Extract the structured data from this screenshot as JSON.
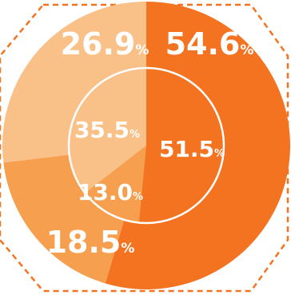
{
  "chart_data": [
    {
      "type": "pie",
      "ring": "outer",
      "categories": [
        "",
        "",
        ""
      ],
      "values": [
        54.6,
        18.5,
        26.9
      ],
      "labels": [
        "54.6",
        "18.5",
        "26.9"
      ],
      "unit": "%",
      "colors": [
        "#F37321",
        "#F6A04F",
        "#F9C088"
      ]
    },
    {
      "type": "pie",
      "ring": "inner",
      "categories": [
        "",
        "",
        ""
      ],
      "values": [
        51.5,
        13.0,
        35.5
      ],
      "labels": [
        "51.5",
        "13.0",
        "35.5"
      ],
      "unit": "%",
      "colors": [
        "#F37321",
        "#F6A04F",
        "#F9C088"
      ]
    }
  ],
  "decor": {
    "dash_color": "#F37321",
    "divider_color": "#ffffff"
  }
}
